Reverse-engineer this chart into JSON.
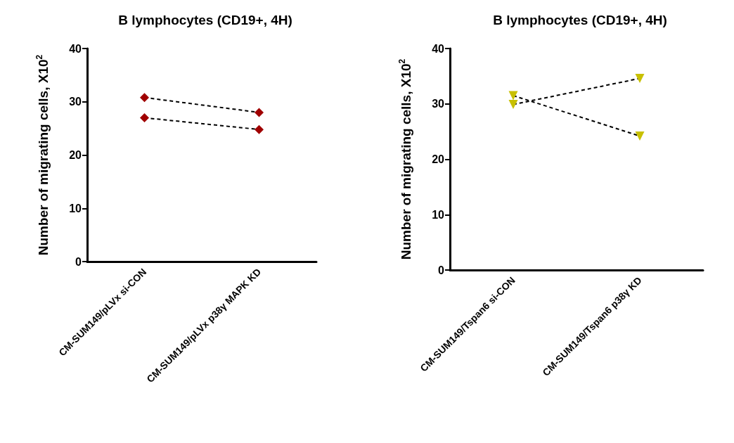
{
  "chart_data": [
    {
      "type": "line",
      "title": "B lymphocytes (CD19+, 4H)",
      "ylabel": "Number of migrating cells, X10$^{2}$",
      "categories": [
        "CM-SUM149/pLVx si-CON",
        "CM-SUM149/pLVx p38γ MAPK KD"
      ],
      "series": [
        {
          "color": "#a00000",
          "values": [
            30.8,
            28.0
          ]
        },
        {
          "color": "#a00000",
          "values": [
            27.0,
            24.8
          ]
        }
      ],
      "ylim": [
        0,
        40
      ],
      "yticks": [
        0,
        10,
        20,
        30,
        40
      ],
      "marker": "diamond",
      "line_style": "dashed",
      "grid": false
    },
    {
      "type": "line",
      "title": "B lymphocytes (CD19+, 4H)",
      "ylabel": "Number of migrating cells, X10$^{2}$",
      "categories": [
        "CM-SUM149/Tspan6 si-CON",
        "CM-SUM149/Tspan6 p38γ KD"
      ],
      "series": [
        {
          "color": "#c8c000",
          "values": [
            31.5,
            24.2
          ]
        },
        {
          "color": "#c8c000",
          "values": [
            29.9,
            34.6
          ]
        }
      ],
      "ylim": [
        0,
        40
      ],
      "yticks": [
        0,
        10,
        20,
        30,
        40
      ],
      "marker": "triangle",
      "line_style": "dashed",
      "grid": false
    }
  ]
}
